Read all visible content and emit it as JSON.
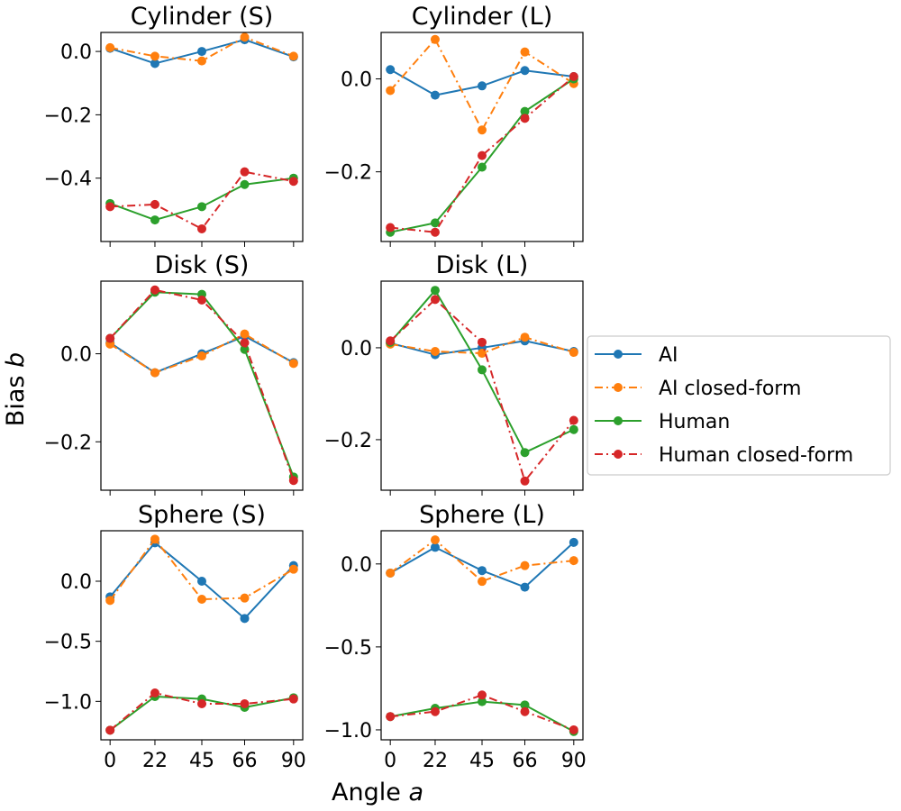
{
  "figure": {
    "xlabel": "Angle a",
    "ylabel": "Bias b",
    "legend_position": "right-center"
  },
  "legend": [
    {
      "name": "AI",
      "color": "#1f77b4",
      "dash": "solid"
    },
    {
      "name": "AI closed-form",
      "color": "#ff7f0e",
      "dash": "dashdot"
    },
    {
      "name": "Human",
      "color": "#2ca02c",
      "dash": "solid"
    },
    {
      "name": "Human closed-form",
      "color": "#d62728",
      "dash": "dashdot"
    }
  ],
  "chart_data": [
    {
      "type": "line",
      "title": "Cylinder (S)",
      "x": [
        0,
        22,
        45,
        66,
        90
      ],
      "x_tick_labels": [
        "0",
        "22",
        "45",
        "66",
        "90"
      ],
      "ylim": [
        -0.6,
        0.06
      ],
      "yticks": [
        0.0,
        -0.2,
        -0.4
      ],
      "ytick_labels": [
        "0.0",
        "−0.2",
        "−0.4"
      ],
      "show_x_tick_labels": false,
      "series": [
        {
          "name": "AI",
          "values": [
            0.01,
            -0.038,
            0.0,
            0.037,
            -0.017
          ]
        },
        {
          "name": "AI closed-form",
          "values": [
            0.012,
            -0.015,
            -0.03,
            0.045,
            -0.015
          ]
        },
        {
          "name": "Human",
          "values": [
            -0.48,
            -0.532,
            -0.49,
            -0.42,
            -0.4
          ]
        },
        {
          "name": "Human closed-form",
          "values": [
            -0.49,
            -0.483,
            -0.56,
            -0.38,
            -0.41
          ]
        }
      ]
    },
    {
      "type": "line",
      "title": "Cylinder (L)",
      "x": [
        0,
        22,
        45,
        66,
        90
      ],
      "x_tick_labels": [
        "0",
        "22",
        "45",
        "66",
        "90"
      ],
      "ylim": [
        -0.35,
        0.1
      ],
      "yticks": [
        0.0,
        -0.2
      ],
      "ytick_labels": [
        "0.0",
        "−0.2"
      ],
      "show_x_tick_labels": false,
      "series": [
        {
          "name": "AI",
          "values": [
            0.02,
            -0.035,
            -0.015,
            0.018,
            0.005
          ]
        },
        {
          "name": "AI closed-form",
          "values": [
            -0.025,
            0.085,
            -0.11,
            0.058,
            -0.01
          ]
        },
        {
          "name": "Human",
          "values": [
            -0.33,
            -0.31,
            -0.19,
            -0.07,
            0.0
          ]
        },
        {
          "name": "Human closed-form",
          "values": [
            -0.32,
            -0.33,
            -0.165,
            -0.085,
            0.005
          ]
        }
      ]
    },
    {
      "type": "line",
      "title": "Disk (S)",
      "x": [
        0,
        22,
        45,
        66,
        90
      ],
      "x_tick_labels": [
        "0",
        "22",
        "45",
        "66",
        "90"
      ],
      "ylim": [
        -0.31,
        0.165
      ],
      "yticks": [
        0.0,
        -0.2
      ],
      "ytick_labels": [
        "0.0",
        "−0.2"
      ],
      "show_x_tick_labels": false,
      "series": [
        {
          "name": "AI",
          "values": [
            0.025,
            -0.043,
            0.0,
            0.04,
            -0.02
          ]
        },
        {
          "name": "AI closed-form",
          "values": [
            0.022,
            -0.043,
            -0.005,
            0.045,
            -0.022
          ]
        },
        {
          "name": "Human",
          "values": [
            0.035,
            0.14,
            0.135,
            0.01,
            -0.28
          ]
        },
        {
          "name": "Human closed-form",
          "values": [
            0.035,
            0.145,
            0.122,
            0.025,
            -0.288
          ]
        }
      ]
    },
    {
      "type": "line",
      "title": "Disk (L)",
      "x": [
        0,
        22,
        45,
        66,
        90
      ],
      "x_tick_labels": [
        "0",
        "22",
        "45",
        "66",
        "90"
      ],
      "ylim": [
        -0.31,
        0.145
      ],
      "yticks": [
        0.0,
        -0.2
      ],
      "ytick_labels": [
        "0.0",
        "−0.2"
      ],
      "show_x_tick_labels": false,
      "series": [
        {
          "name": "AI",
          "values": [
            0.01,
            -0.015,
            0.0,
            0.015,
            -0.008
          ]
        },
        {
          "name": "AI closed-form",
          "values": [
            0.008,
            -0.008,
            -0.012,
            0.023,
            -0.01
          ]
        },
        {
          "name": "Human",
          "values": [
            0.012,
            0.125,
            -0.048,
            -0.228,
            -0.178
          ]
        },
        {
          "name": "Human closed-form",
          "values": [
            0.015,
            0.105,
            0.012,
            -0.29,
            -0.158
          ]
        }
      ]
    },
    {
      "type": "line",
      "title": "Sphere (S)",
      "x": [
        0,
        22,
        45,
        66,
        90
      ],
      "x_tick_labels": [
        "0",
        "22",
        "45",
        "66",
        "90"
      ],
      "ylim": [
        -1.32,
        0.42
      ],
      "yticks": [
        0.0,
        -0.5,
        -1.0
      ],
      "ytick_labels": [
        "0.0",
        "−0.5",
        "−1.0"
      ],
      "show_x_tick_labels": true,
      "series": [
        {
          "name": "AI",
          "values": [
            -0.13,
            0.32,
            0.0,
            -0.31,
            0.13
          ]
        },
        {
          "name": "AI closed-form",
          "values": [
            -0.16,
            0.35,
            -0.15,
            -0.14,
            0.1
          ]
        },
        {
          "name": "Human",
          "values": [
            -1.24,
            -0.96,
            -0.98,
            -1.05,
            -0.97
          ]
        },
        {
          "name": "Human closed-form",
          "values": [
            -1.24,
            -0.93,
            -1.02,
            -1.02,
            -0.98
          ]
        }
      ]
    },
    {
      "type": "line",
      "title": "Sphere (L)",
      "x": [
        0,
        22,
        45,
        66,
        90
      ],
      "x_tick_labels": [
        "0",
        "22",
        "45",
        "66",
        "90"
      ],
      "ylim": [
        -1.06,
        0.2
      ],
      "yticks": [
        0.0,
        -0.5,
        -1.0
      ],
      "ytick_labels": [
        "0.0",
        "−0.5",
        "−1.0"
      ],
      "show_x_tick_labels": true,
      "series": [
        {
          "name": "AI",
          "values": [
            -0.055,
            0.1,
            -0.04,
            -0.14,
            0.13
          ]
        },
        {
          "name": "AI closed-form",
          "values": [
            -0.055,
            0.145,
            -0.105,
            -0.01,
            0.02
          ]
        },
        {
          "name": "Human",
          "values": [
            -0.92,
            -0.87,
            -0.83,
            -0.85,
            -1.01
          ]
        },
        {
          "name": "Human closed-form",
          "values": [
            -0.92,
            -0.89,
            -0.79,
            -0.89,
            -1.0
          ]
        }
      ]
    }
  ]
}
